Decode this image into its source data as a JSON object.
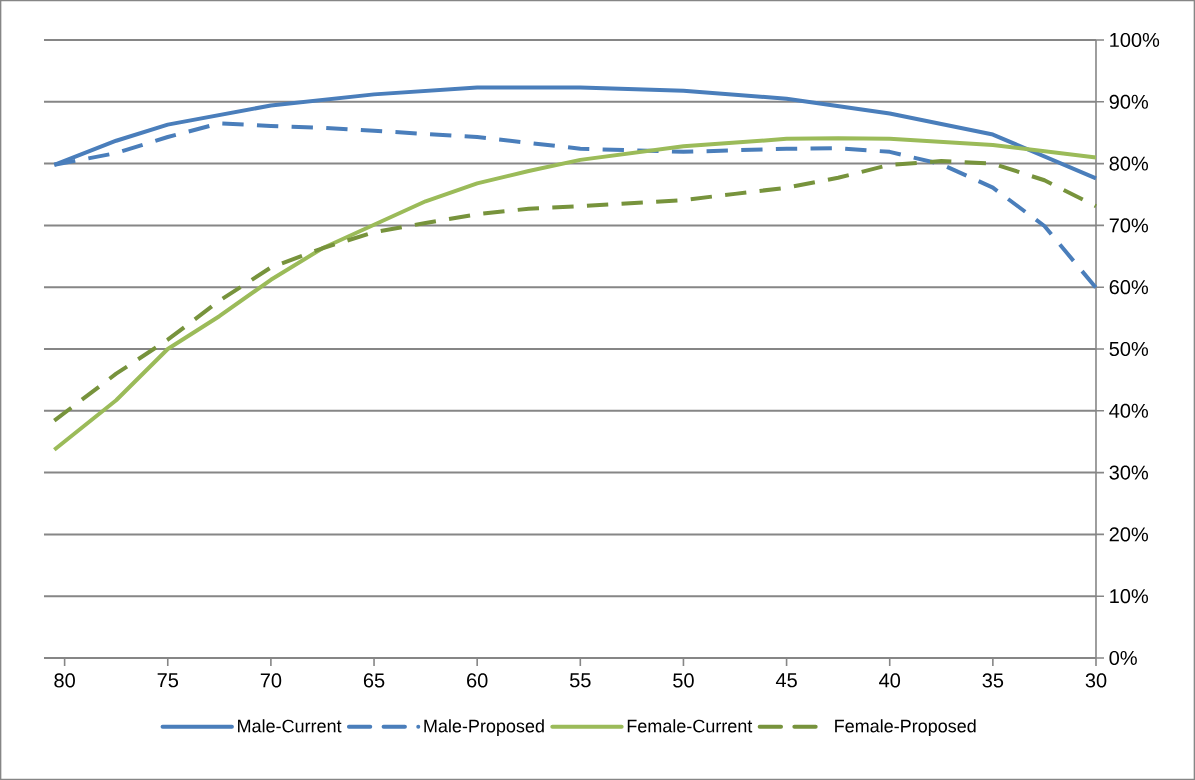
{
  "chart_data": {
    "type": "line",
    "xlim": [
      81,
      30
    ],
    "xticks": [
      80,
      75,
      70,
      65,
      60,
      55,
      50,
      45,
      40,
      35,
      30
    ],
    "ylim": [
      0,
      100
    ],
    "yticks": [
      {
        "value": 0,
        "label": "0%"
      },
      {
        "value": 10,
        "label": "10%"
      },
      {
        "value": 20,
        "label": "20%"
      },
      {
        "value": 30,
        "label": "30%"
      },
      {
        "value": 40,
        "label": "40%"
      },
      {
        "value": 50,
        "label": "50%"
      },
      {
        "value": 60,
        "label": "60%"
      },
      {
        "value": 70,
        "label": "70%"
      },
      {
        "value": 80,
        "label": "80%"
      },
      {
        "value": 90,
        "label": "90%"
      },
      {
        "value": 100,
        "label": "100%"
      }
    ],
    "grid": "y",
    "legend": "bottom",
    "series": [
      {
        "name": "Male-Current",
        "color": "#4a7ebb",
        "line_style": "solid",
        "x": [
          80.5,
          77.5,
          75,
          70,
          65,
          60,
          55,
          50,
          45,
          40,
          35,
          30
        ],
        "values": [
          79.8,
          83.7,
          86.3,
          89.4,
          91.2,
          92.3,
          92.3,
          91.8,
          90.5,
          88.1,
          84.7,
          77.6
        ]
      },
      {
        "name": "Male-Proposed",
        "color": "#4a7ebb",
        "line_style": "dashed",
        "x": [
          80.5,
          77.5,
          75,
          72.5,
          70,
          67.5,
          65,
          60,
          55,
          50,
          45,
          42.5,
          40,
          37.5,
          35,
          32.5,
          30
        ],
        "values": [
          79.8,
          81.7,
          84.3,
          86.5,
          86.1,
          85.8,
          85.3,
          84.3,
          82.4,
          81.9,
          82.4,
          82.5,
          81.9,
          79.9,
          76.1,
          69.9,
          59.9
        ]
      },
      {
        "name": "Female-Current",
        "color": "#9bbb59",
        "line_style": "solid",
        "x": [
          80.5,
          77.5,
          75,
          72.5,
          70,
          67.5,
          65,
          62.5,
          60,
          57.5,
          55,
          50,
          45,
          42.5,
          40,
          35,
          30
        ],
        "values": [
          33.7,
          41.7,
          50.0,
          55.3,
          61.2,
          66.3,
          70.1,
          73.9,
          76.8,
          78.8,
          80.6,
          82.8,
          84.0,
          84.1,
          84.0,
          83.0,
          81.0
        ]
      },
      {
        "name": "Female-Proposed",
        "color": "#77933c",
        "line_style": "dashed",
        "x": [
          80.5,
          77.5,
          75,
          72.5,
          70,
          67.5,
          65,
          62.5,
          60,
          57.5,
          55,
          50,
          47.5,
          45,
          42.5,
          40,
          37.5,
          35,
          32.5,
          30
        ],
        "values": [
          38.4,
          46.0,
          51.5,
          57.8,
          63.2,
          66.3,
          68.9,
          70.4,
          71.8,
          72.7,
          73.1,
          74.1,
          75.1,
          76.1,
          77.7,
          79.8,
          80.4,
          80.0,
          77.3,
          73.1
        ]
      }
    ]
  }
}
